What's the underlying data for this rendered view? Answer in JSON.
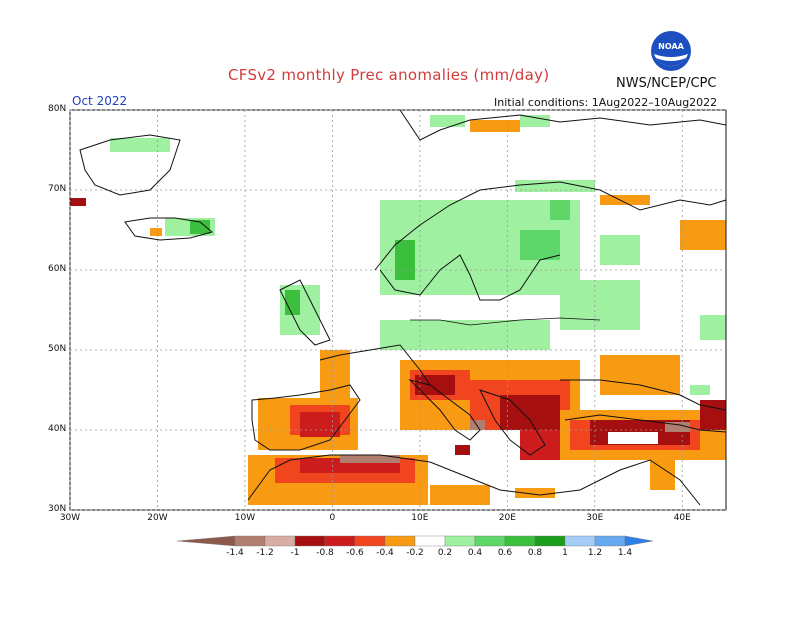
{
  "title": "CFSv2 monthly Prec anomalies (mm/day)",
  "agency": "NWS/NCEP/CPC",
  "month_label": "Oct 2022",
  "initial_conditions": "Initial conditions: 1Aug2022–10Aug2022",
  "logo_icon": "noaa-logo-icon",
  "map": {
    "lat_ticks": [
      "80N",
      "70N",
      "60N",
      "50N",
      "40N",
      "30N"
    ],
    "lon_ticks": [
      "30W",
      "20W",
      "10W",
      "0",
      "10E",
      "20E",
      "30E",
      "40E"
    ],
    "lat_range": [
      30,
      80
    ],
    "lon_range": [
      -30,
      45
    ],
    "grid": true
  },
  "colorbar": {
    "labels": [
      "-1.4",
      "-1.2",
      "-1",
      "-0.8",
      "-0.6",
      "-0.4",
      "-0.2",
      "0.2",
      "0.4",
      "0.6",
      "0.8",
      "1",
      "1.2",
      "1.4"
    ],
    "colors": [
      "#8c5a4a",
      "#b07d6e",
      "#d9aea2",
      "#a50f0f",
      "#cc1c1c",
      "#f0451e",
      "#f89a12",
      "#ffffff",
      "#9ff0a0",
      "#5ed66a",
      "#3cbf3c",
      "#1a9e1a",
      "#a5cdf7",
      "#67a9f0",
      "#2f7fe8"
    ]
  },
  "colors": {
    "dry_light": "#f89a12",
    "dry_mid": "#f0451e",
    "dry_strong": "#cc1c1c",
    "dry_vstrong": "#a50f0f",
    "dry_brown": "#b07d6e",
    "wet_light": "#9ff0a0",
    "wet_mid": "#5ed66a",
    "wet_strong": "#3cbf3c"
  }
}
